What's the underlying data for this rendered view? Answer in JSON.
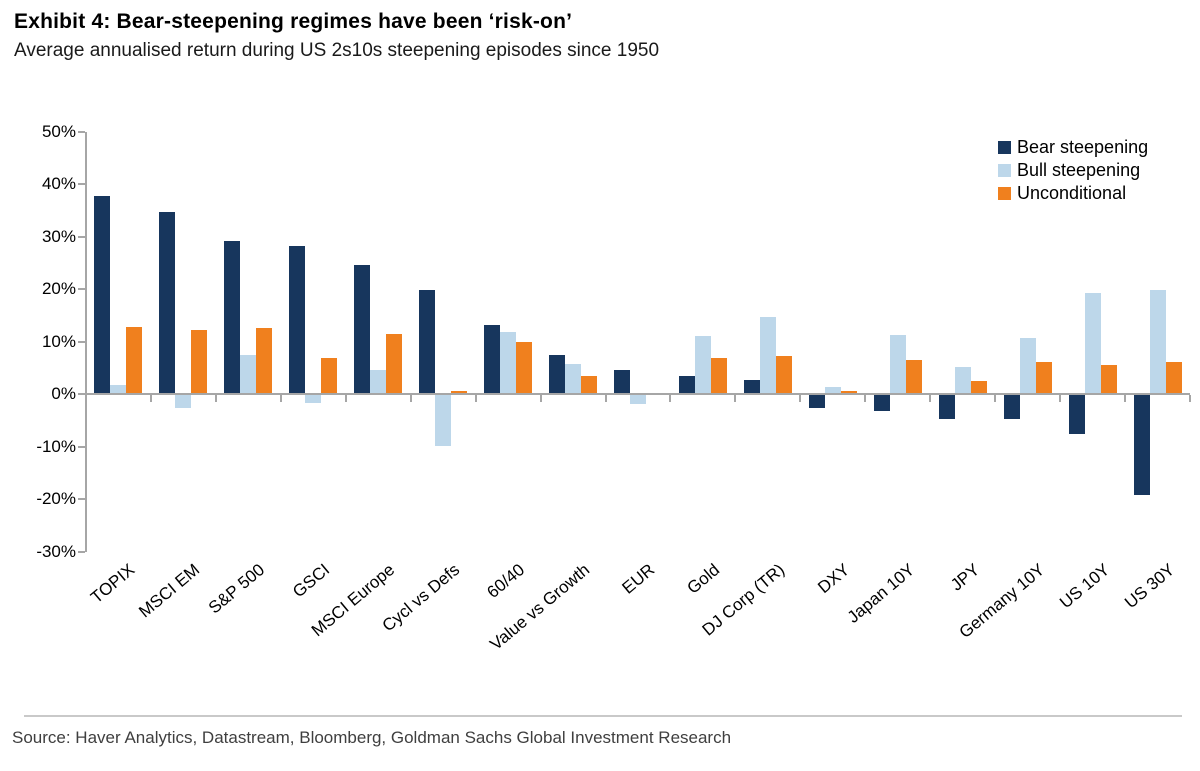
{
  "header": {
    "title": "Exhibit 4: Bear-steepening regimes have been ‘risk-on’",
    "subtitle": "Average annualised return during US 2s10s steepening episodes since 1950"
  },
  "chart_data": {
    "type": "bar",
    "title": "Exhibit 4: Bear-steepening regimes have been ‘risk-on’",
    "subtitle": "Average annualised return during US 2s10s steepening episodes since 1950",
    "categories": [
      "TOPIX",
      "MSCI EM",
      "S&P 500",
      "GSCI",
      "MSCI Europe",
      "Cycl vs Defs",
      "60/40",
      "Value vs Growth",
      "EUR",
      "Gold",
      "DJ Corp (TR)",
      "DXY",
      "Japan 10Y",
      "JPY",
      "Germany 10Y",
      "US 10Y",
      "US 30Y"
    ],
    "series": [
      {
        "name": "Bear steepening",
        "color": "#17365D",
        "values": [
          37.5,
          34.5,
          29.0,
          28.0,
          24.3,
          19.6,
          13.0,
          7.2,
          4.4,
          3.2,
          2.5,
          -2.5,
          -3.0,
          -4.5,
          -4.5,
          -7.5,
          -19.0
        ]
      },
      {
        "name": "Bull steepening",
        "color": "#BDD7EA",
        "values": [
          1.5,
          -2.5,
          7.2,
          -1.5,
          4.4,
          -9.8,
          11.7,
          5.5,
          -1.7,
          10.9,
          14.5,
          1.1,
          11.0,
          5.0,
          10.4,
          19.0,
          19.7
        ]
      },
      {
        "name": "Unconditional",
        "color": "#F0801E",
        "values": [
          12.6,
          12.0,
          12.3,
          6.7,
          11.2,
          0.3,
          9.7,
          3.3,
          0.0,
          6.6,
          7.0,
          0.4,
          6.2,
          2.2,
          6.0,
          5.4,
          6.0
        ]
      }
    ],
    "xlabel": "",
    "ylabel": "",
    "ylim": [
      -30,
      50
    ],
    "y_ticks": [
      "50%",
      "40%",
      "30%",
      "20%",
      "10%",
      "0%",
      "-10%",
      "-20%",
      "-30%"
    ],
    "grid": false,
    "legend_position": "top-right",
    "axis_color": "#a6a6a6"
  },
  "footer": {
    "source": "Source: Haver Analytics, Datastream, Bloomberg, Goldman Sachs Global Investment Research"
  }
}
